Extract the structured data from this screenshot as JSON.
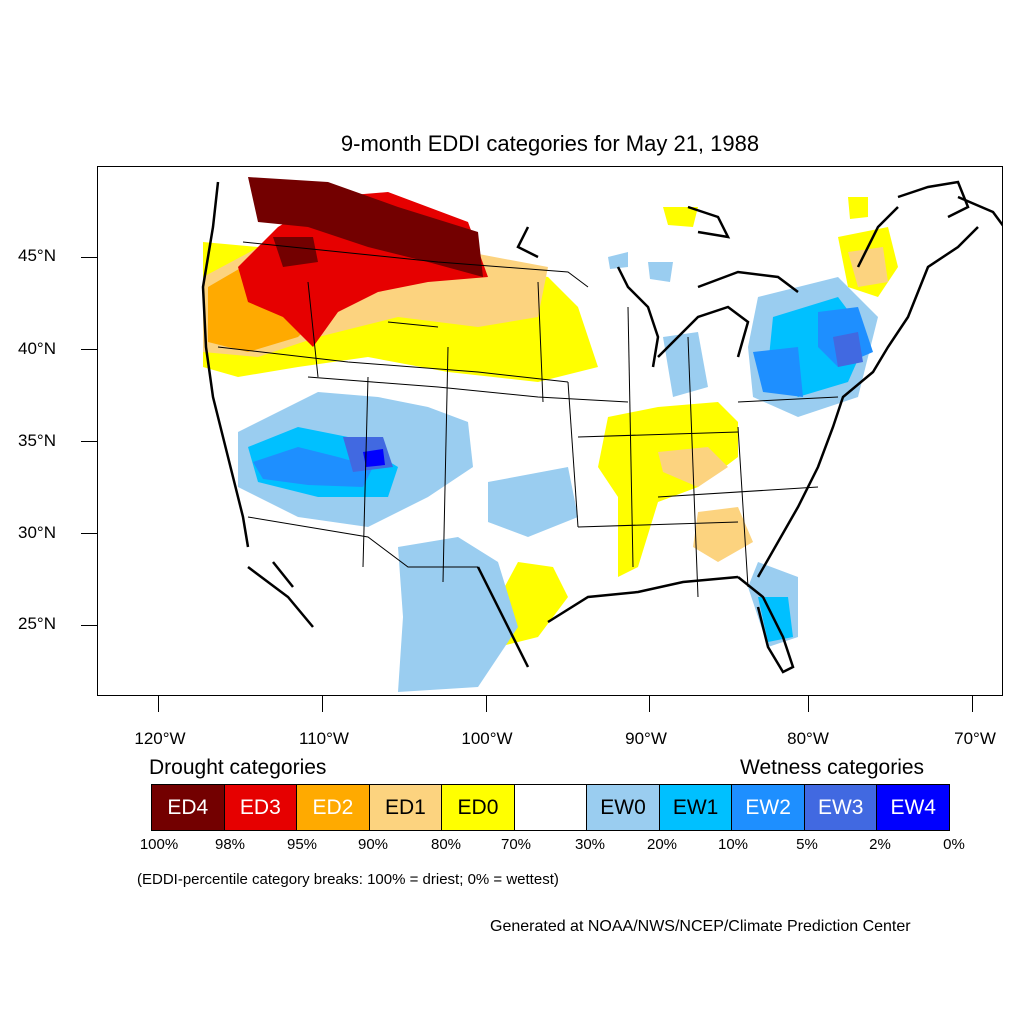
{
  "title": "9-month EDDI categories for May 21, 1988",
  "map": {
    "lat_ticks": [
      "45°N",
      "40°N",
      "35°N",
      "30°N",
      "25°N"
    ],
    "lon_ticks": [
      "120°W",
      "110°W",
      "100°W",
      "90°W",
      "80°W",
      "70°W"
    ]
  },
  "legend": {
    "drought_header": "Drought categories",
    "wetness_header": "Wetness categories",
    "categories": [
      {
        "label": "ED4",
        "color": "#730000",
        "text_color": "#ffffff"
      },
      {
        "label": "ED3",
        "color": "#e60000",
        "text_color": "#ffffff"
      },
      {
        "label": "ED2",
        "color": "#ffaa00",
        "text_color": "#ffffff"
      },
      {
        "label": "ED1",
        "color": "#fcd37f",
        "text_color": "#000000"
      },
      {
        "label": "ED0",
        "color": "#ffff00",
        "text_color": "#000000"
      },
      {
        "label": "",
        "color": "#ffffff",
        "text_color": "#000000"
      },
      {
        "label": "EW0",
        "color": "#9acdf0",
        "text_color": "#000000"
      },
      {
        "label": "EW1",
        "color": "#00c0ff",
        "text_color": "#000000"
      },
      {
        "label": "EW2",
        "color": "#1e8fff",
        "text_color": "#ffffff"
      },
      {
        "label": "EW3",
        "color": "#4169e1",
        "text_color": "#ffffff"
      },
      {
        "label": "EW4",
        "color": "#0000ff",
        "text_color": "#ffffff"
      }
    ],
    "breaks": [
      "100%",
      "98%",
      "95%",
      "90%",
      "80%",
      "70%",
      "30%",
      "20%",
      "10%",
      "5%",
      "2%",
      "0%"
    ]
  },
  "note": "(EDDI-percentile category breaks: 100% = driest; 0% = wettest)",
  "credit": "Generated at NOAA/NWS/NCEP/Climate Prediction Center"
}
